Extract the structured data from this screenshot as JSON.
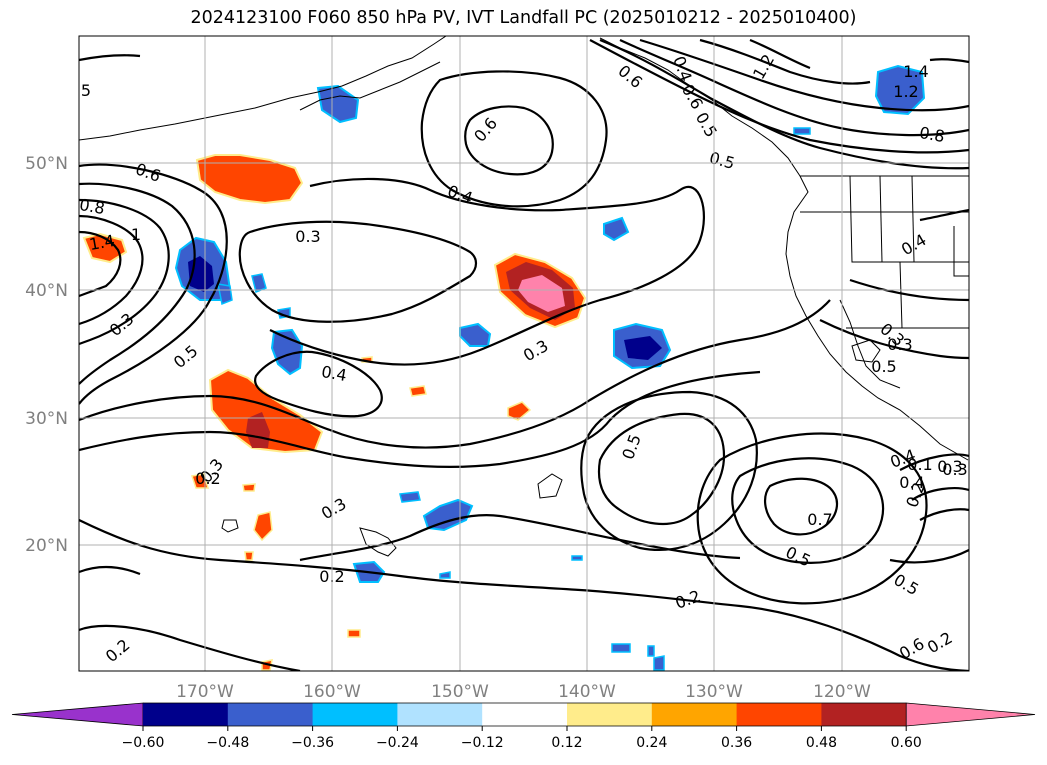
{
  "figure": {
    "title": "2024123100 F060 850 hPa PV, IVT Landfall PC (2025010212 - 2025010400)"
  },
  "map": {
    "lat_ticks": [
      "50°N",
      "40°N",
      "30°N",
      "20°N"
    ],
    "lon_ticks": [
      "170°W",
      "160°W",
      "150°W",
      "140°W",
      "130°W",
      "120°W"
    ],
    "contour_labels": [
      "5",
      "0.6",
      "0.8",
      "1.4",
      "1",
      "0.3",
      "0.5",
      "0.3",
      "0.4",
      "0.6",
      "0.4",
      "0.3",
      "0.5",
      "0.2",
      "0.3",
      "0.2",
      "0.2",
      "0.5",
      "0.7",
      "0.5",
      "0.6",
      "0.3",
      "0.2",
      "0.4",
      "0.3",
      "0.3",
      "0.5",
      "0.4",
      "0.6",
      "0.4",
      "0.5",
      "0.8",
      "1.4",
      "1.2",
      "1.2",
      "0.4",
      "0.6",
      "0.5",
      "0.3",
      "0.2",
      "0.2",
      "0.1",
      "0.4",
      "0.3"
    ]
  },
  "colorbar": {
    "colors": [
      "#9932cc",
      "#00008b",
      "#3a5fcd",
      "#00bfff",
      "#b0e2ff",
      "#ffffff",
      "#ffec8b",
      "#ffa500",
      "#ff4500",
      "#b22222",
      "#ff82ab"
    ],
    "tick_labels": [
      "−0.60",
      "−0.48",
      "−0.36",
      "−0.24",
      "−0.12",
      "0.12",
      "0.24",
      "0.36",
      "0.48",
      "0.60"
    ]
  },
  "colors": {
    "contour": "#000000",
    "grid": "#b0b0b0",
    "tick_label": "#808080"
  }
}
